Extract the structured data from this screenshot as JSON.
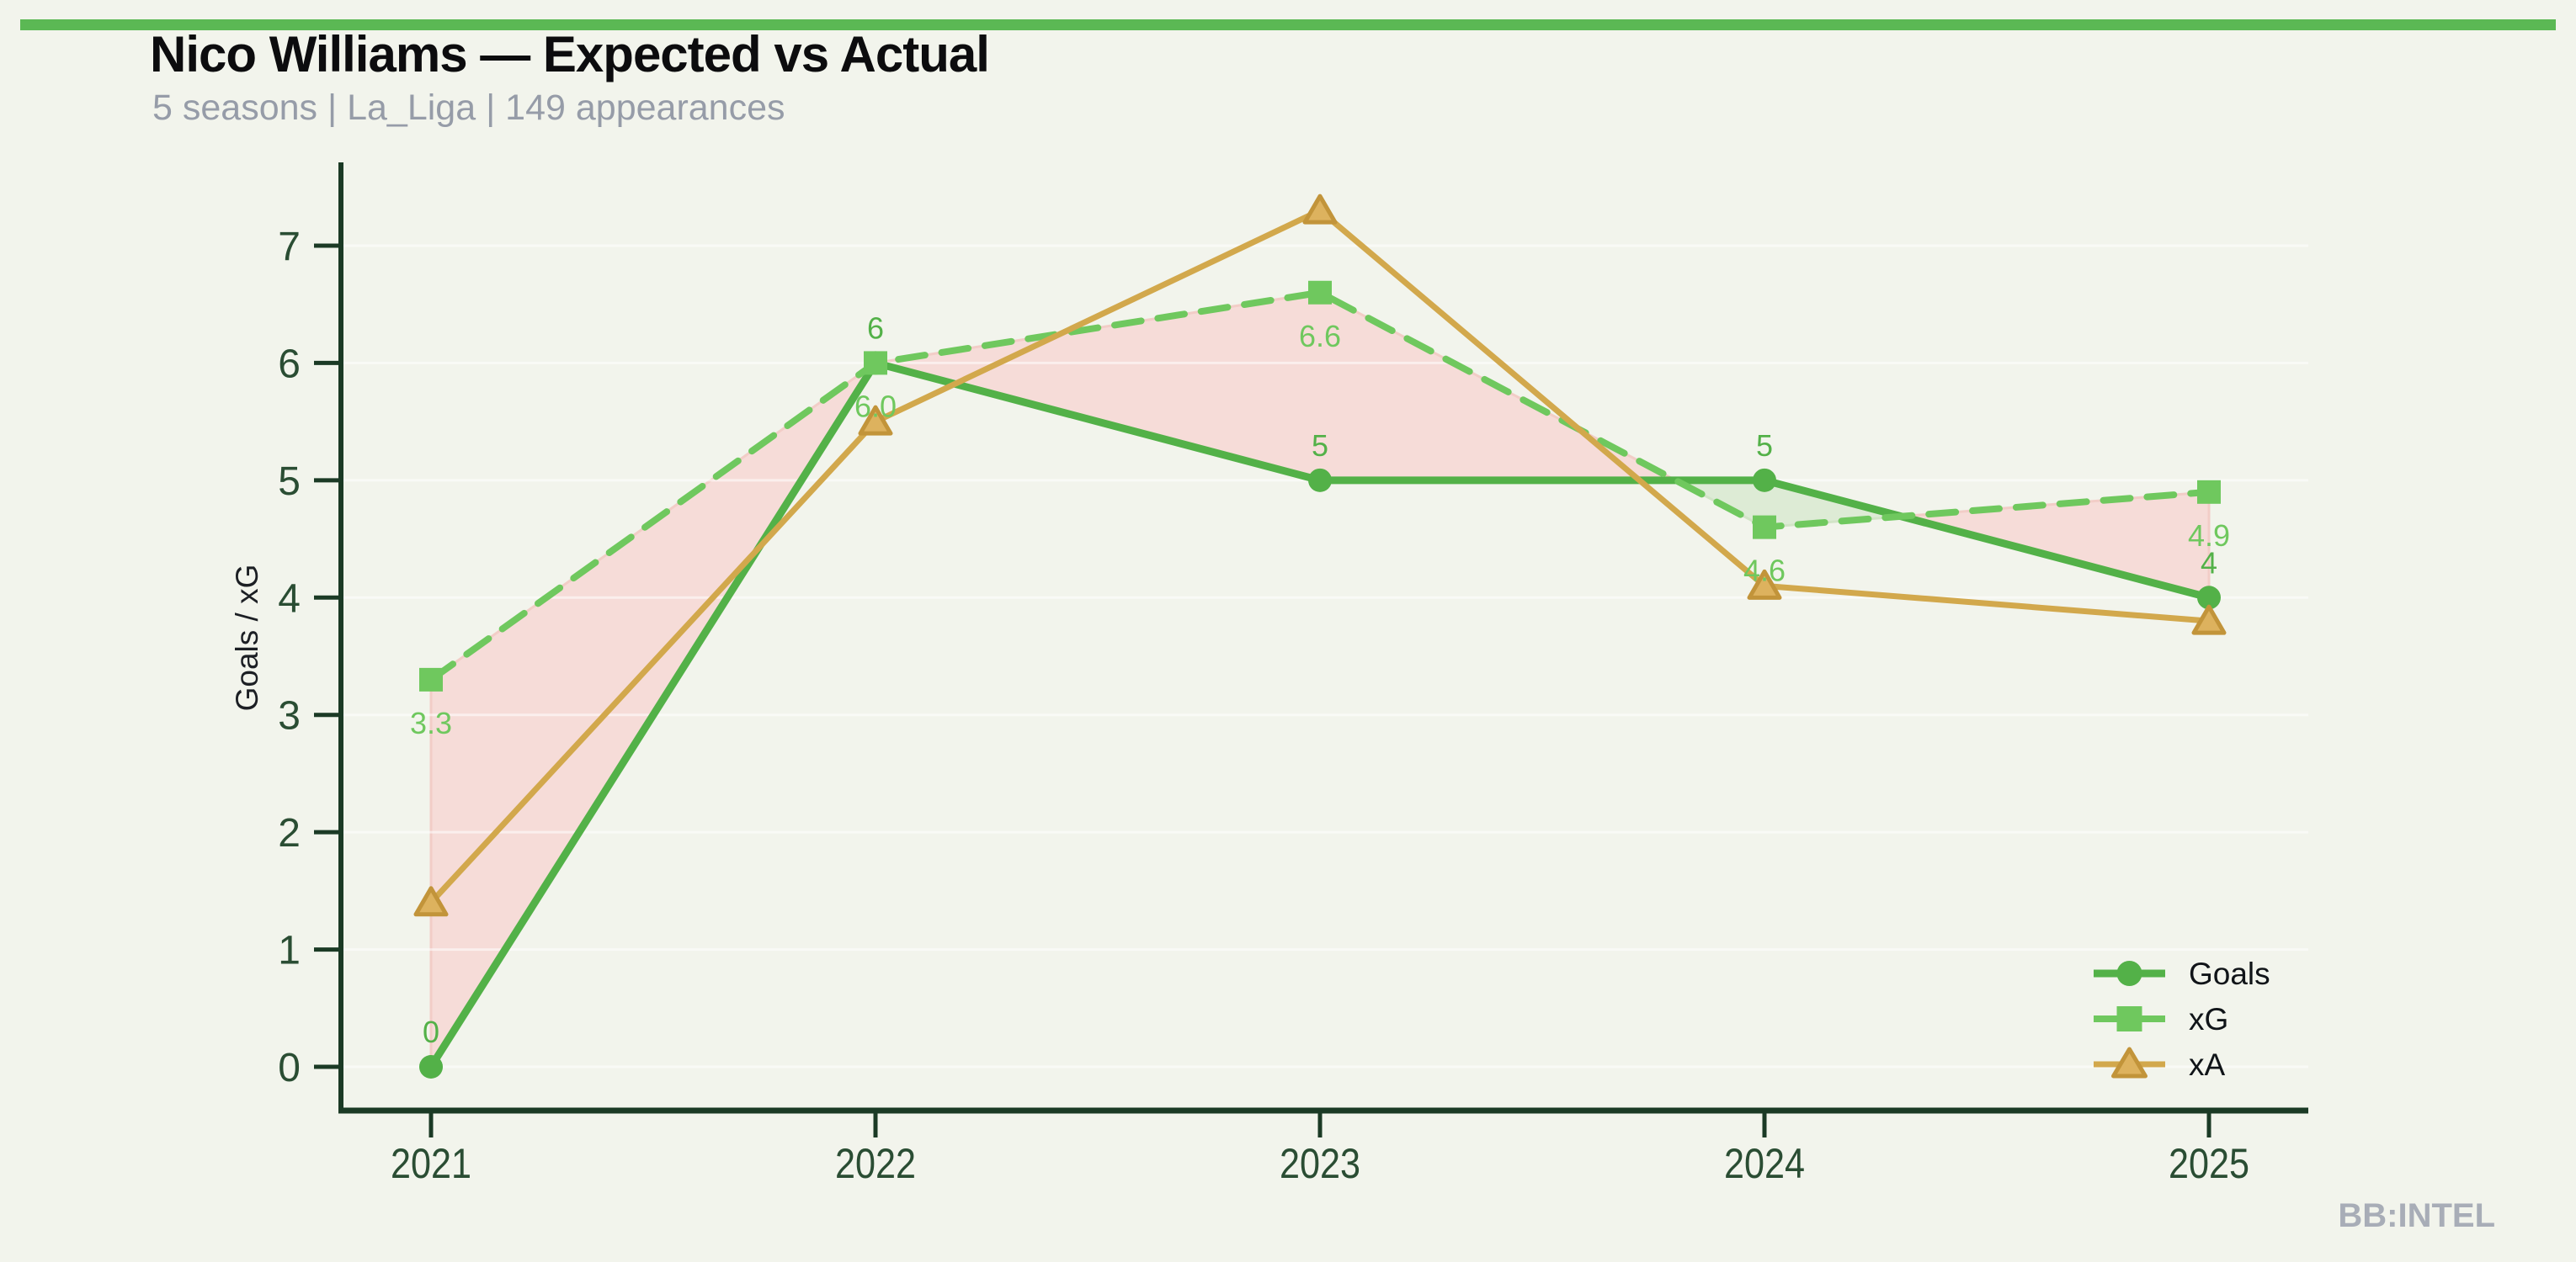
{
  "header": {
    "title": "Nico Williams — Expected vs Actual",
    "subtitle": "5 seasons | La_Liga | 149 appearances"
  },
  "watermark": "BB:INTEL",
  "theme": {
    "background": "#f2f4ec",
    "accent_bar_color": "#5bb854",
    "title_color": "#0c0c0e",
    "subtitle_color": "#969ca8",
    "watermark_color": "#a8adb7",
    "axis_color": "#1b3a25",
    "tick_label_color": "#2a4d33",
    "ylabel_color": "#1c1f24",
    "grid_color": "rgba(255,255,255,0.55)",
    "legend_text_color": "#101418"
  },
  "chart_data": {
    "type": "line",
    "title": "Nico Williams — Expected vs Actual",
    "subtitle": "5 seasons | La_Liga | 149 appearances",
    "xlabel": "",
    "ylabel": "Goals / xG",
    "categories": [
      "2021",
      "2022",
      "2023",
      "2024",
      "2025"
    ],
    "yticks": [
      0,
      1,
      2,
      3,
      4,
      5,
      6,
      7
    ],
    "ylim": [
      0,
      7.7
    ],
    "grid": "faint horizontal lines at integer values",
    "legend_position": "lower right",
    "series": [
      {
        "name": "Goals",
        "values": [
          0,
          6,
          5,
          5,
          4
        ],
        "labels": [
          "0",
          "6",
          "5",
          "5",
          "4"
        ],
        "color": "#53b148",
        "line": "solid",
        "marker": "circle",
        "label_position": "above"
      },
      {
        "name": "xG",
        "values": [
          3.3,
          6.0,
          6.6,
          4.6,
          4.9
        ],
        "labels": [
          "3.3",
          "6.0",
          "6.6",
          "4.6",
          "4.9"
        ],
        "color": "#6fc85e",
        "line": "dashed",
        "marker": "square",
        "label_position": "below"
      },
      {
        "name": "xA",
        "values": [
          1.4,
          5.5,
          7.3,
          4.1,
          3.8
        ],
        "labels": [],
        "color": "#d2a84c",
        "marker_fill": "#ddb25e",
        "marker_edge": "#c2943a",
        "line": "solid",
        "marker": "triangle",
        "label_position": "none"
      }
    ],
    "fills": {
      "between": [
        "xG",
        "Goals"
      ],
      "xg_above_goals_color": "#f6dcd8",
      "xg_above_goals_edge": "#f2cdc7",
      "goals_above_xg_color": "#ddebd5",
      "goals_above_xg_edge": "#d2e4c7"
    }
  }
}
